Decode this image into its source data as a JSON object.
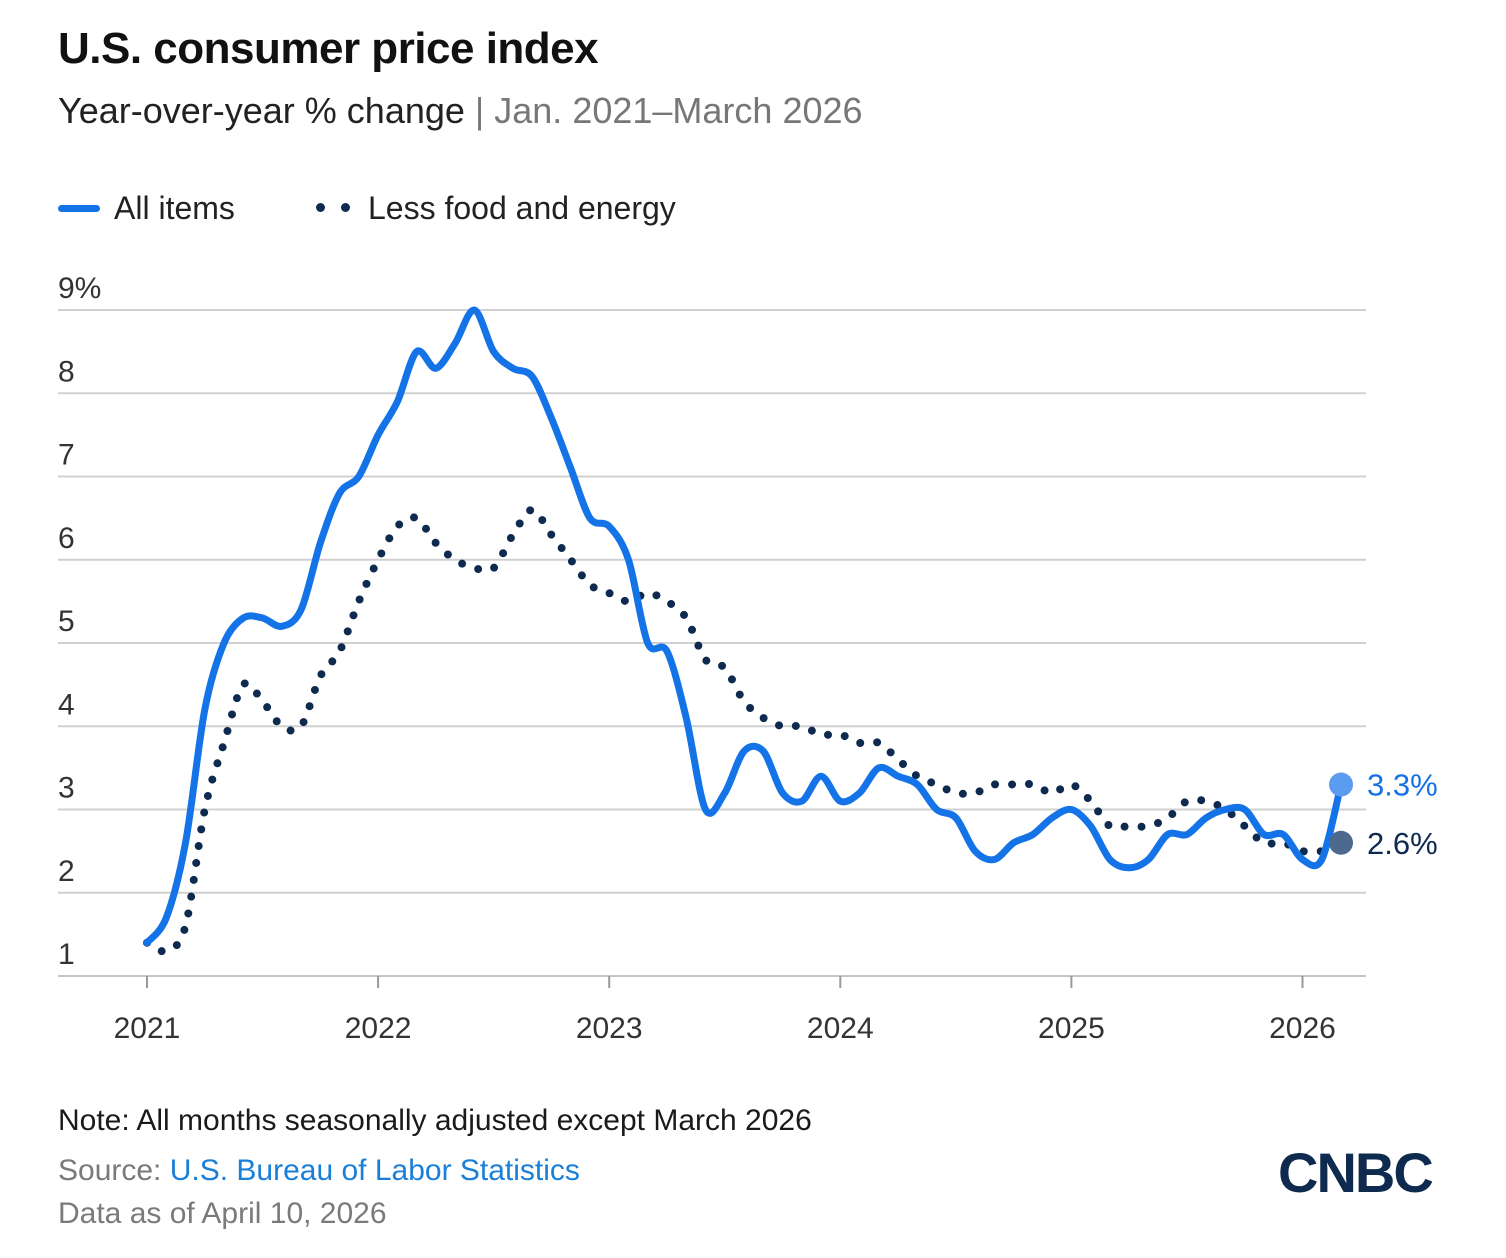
{
  "header": {
    "title": "U.S. consumer price index",
    "subtitle_main": "Year-over-year % change",
    "subtitle_sep": " | ",
    "subtitle_range": "Jan. 2021–March 2026"
  },
  "legend": {
    "all_items": "All items",
    "core": "Less food and energy"
  },
  "colors": {
    "all_items": "#1473e6",
    "core": "#0e2a4f",
    "all_items_marker": "#5b9cf0",
    "core_marker": "#4d6a8e",
    "grid": "#d0d0d0"
  },
  "footer": {
    "note": "Note: All months seasonally adjusted except March 2026",
    "source_prefix": "Source: ",
    "source_link": "U.S. Bureau of Labor Statistics",
    "as_of": "Data as of April 10, 2026",
    "logo": "CNBC"
  },
  "chart_data": {
    "type": "line",
    "title": "U.S. consumer price index",
    "ylim": [
      1,
      9
    ],
    "y_ticks": [
      1,
      2,
      3,
      4,
      5,
      6,
      7,
      8,
      9
    ],
    "y_tick_labels": [
      "1",
      "2",
      "3",
      "4",
      "5",
      "6",
      "7",
      "8",
      "9%"
    ],
    "x_ticks": [
      "2021",
      "2022",
      "2023",
      "2024",
      "2025",
      "2026"
    ],
    "x_start": "2021-01",
    "grid": true,
    "legend_position": "top-left",
    "series": [
      {
        "name": "All items",
        "style": "solid",
        "end_label": "3.3%",
        "values": [
          1.4,
          1.7,
          2.6,
          4.2,
          5.0,
          5.3,
          5.3,
          5.2,
          5.4,
          6.2,
          6.8,
          7.0,
          7.5,
          7.9,
          8.5,
          8.3,
          8.6,
          9.0,
          8.5,
          8.3,
          8.2,
          7.7,
          7.1,
          6.5,
          6.4,
          6.0,
          5.0,
          4.9,
          4.1,
          3.0,
          3.2,
          3.7,
          3.7,
          3.2,
          3.1,
          3.4,
          3.1,
          3.2,
          3.5,
          3.4,
          3.3,
          3.0,
          2.9,
          2.5,
          2.4,
          2.6,
          2.7,
          2.9,
          3.0,
          2.8,
          2.4,
          2.3,
          2.4,
          2.7,
          2.7,
          2.9,
          3.0,
          3.0,
          2.7,
          2.7,
          2.4,
          2.4,
          3.3
        ]
      },
      {
        "name": "Less food and energy",
        "style": "dotted",
        "end_label": "2.6%",
        "values": [
          1.4,
          1.3,
          1.6,
          3.0,
          3.8,
          4.5,
          4.3,
          4.0,
          4.0,
          4.6,
          4.9,
          5.5,
          6.0,
          6.4,
          6.5,
          6.2,
          6.0,
          5.9,
          5.9,
          6.3,
          6.6,
          6.3,
          6.0,
          5.7,
          5.6,
          5.5,
          5.6,
          5.5,
          5.3,
          4.8,
          4.7,
          4.3,
          4.1,
          4.0,
          4.0,
          3.9,
          3.9,
          3.8,
          3.8,
          3.6,
          3.4,
          3.3,
          3.2,
          3.2,
          3.3,
          3.3,
          3.3,
          3.2,
          3.3,
          3.1,
          2.8,
          2.8,
          2.8,
          2.9,
          3.1,
          3.1,
          3.0,
          2.8,
          2.6,
          2.6,
          2.5,
          2.5,
          2.6
        ]
      }
    ]
  }
}
